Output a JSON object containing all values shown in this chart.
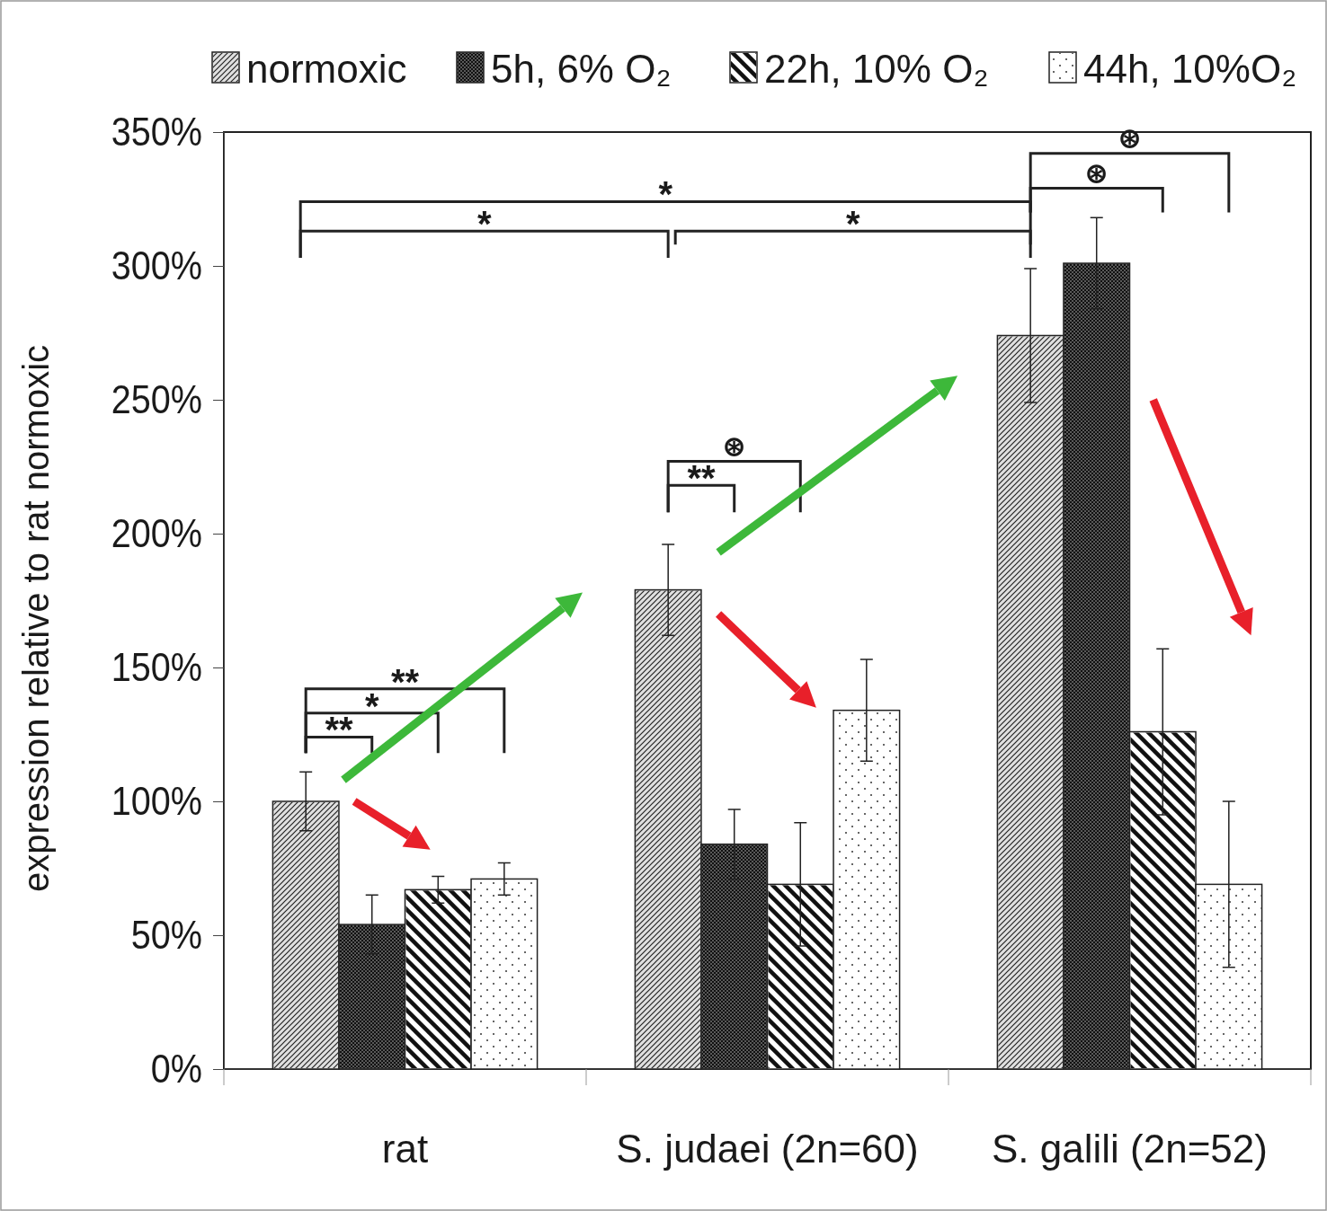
{
  "chart_data": {
    "type": "bar",
    "ylabel": "expression relative to rat normoxic",
    "categories": [
      "rat",
      "S. judaei (2n=60)",
      "S. galili (2n=52)"
    ],
    "series": [
      {
        "name": "normoxic",
        "color": "#e0e0e0",
        "values": [
          100,
          179,
          274
        ],
        "errors": [
          11,
          17,
          25
        ]
      },
      {
        "name": "5h, 6% O₂",
        "color": "#595959",
        "values": [
          54,
          84,
          301
        ],
        "errors": [
          11,
          13,
          17
        ]
      },
      {
        "name": "22h, 10% O₂",
        "color": "#ffffff",
        "values": [
          67,
          69,
          126
        ],
        "errors": [
          5,
          23,
          31
        ]
      },
      {
        "name": "44h, 10%O₂",
        "color": "#ffffff",
        "values": [
          71,
          134,
          69
        ],
        "errors": [
          6,
          19,
          31
        ]
      }
    ],
    "ylim": [
      0,
      350
    ],
    "yticks": [
      {
        "value": 0,
        "label": "0%"
      },
      {
        "value": 50,
        "label": "50%"
      },
      {
        "value": 100,
        "label": "100%"
      },
      {
        "value": 150,
        "label": "150%"
      },
      {
        "value": 200,
        "label": "200%"
      },
      {
        "value": 250,
        "label": "250%"
      },
      {
        "value": 300,
        "label": "300%"
      },
      {
        "value": 350,
        "label": "350%"
      }
    ],
    "grid": false,
    "legend": "top",
    "annotations": [
      "**",
      "*",
      "**",
      "**",
      "⊛",
      "*",
      "*",
      "*",
      "⊛",
      "⊛"
    ]
  }
}
